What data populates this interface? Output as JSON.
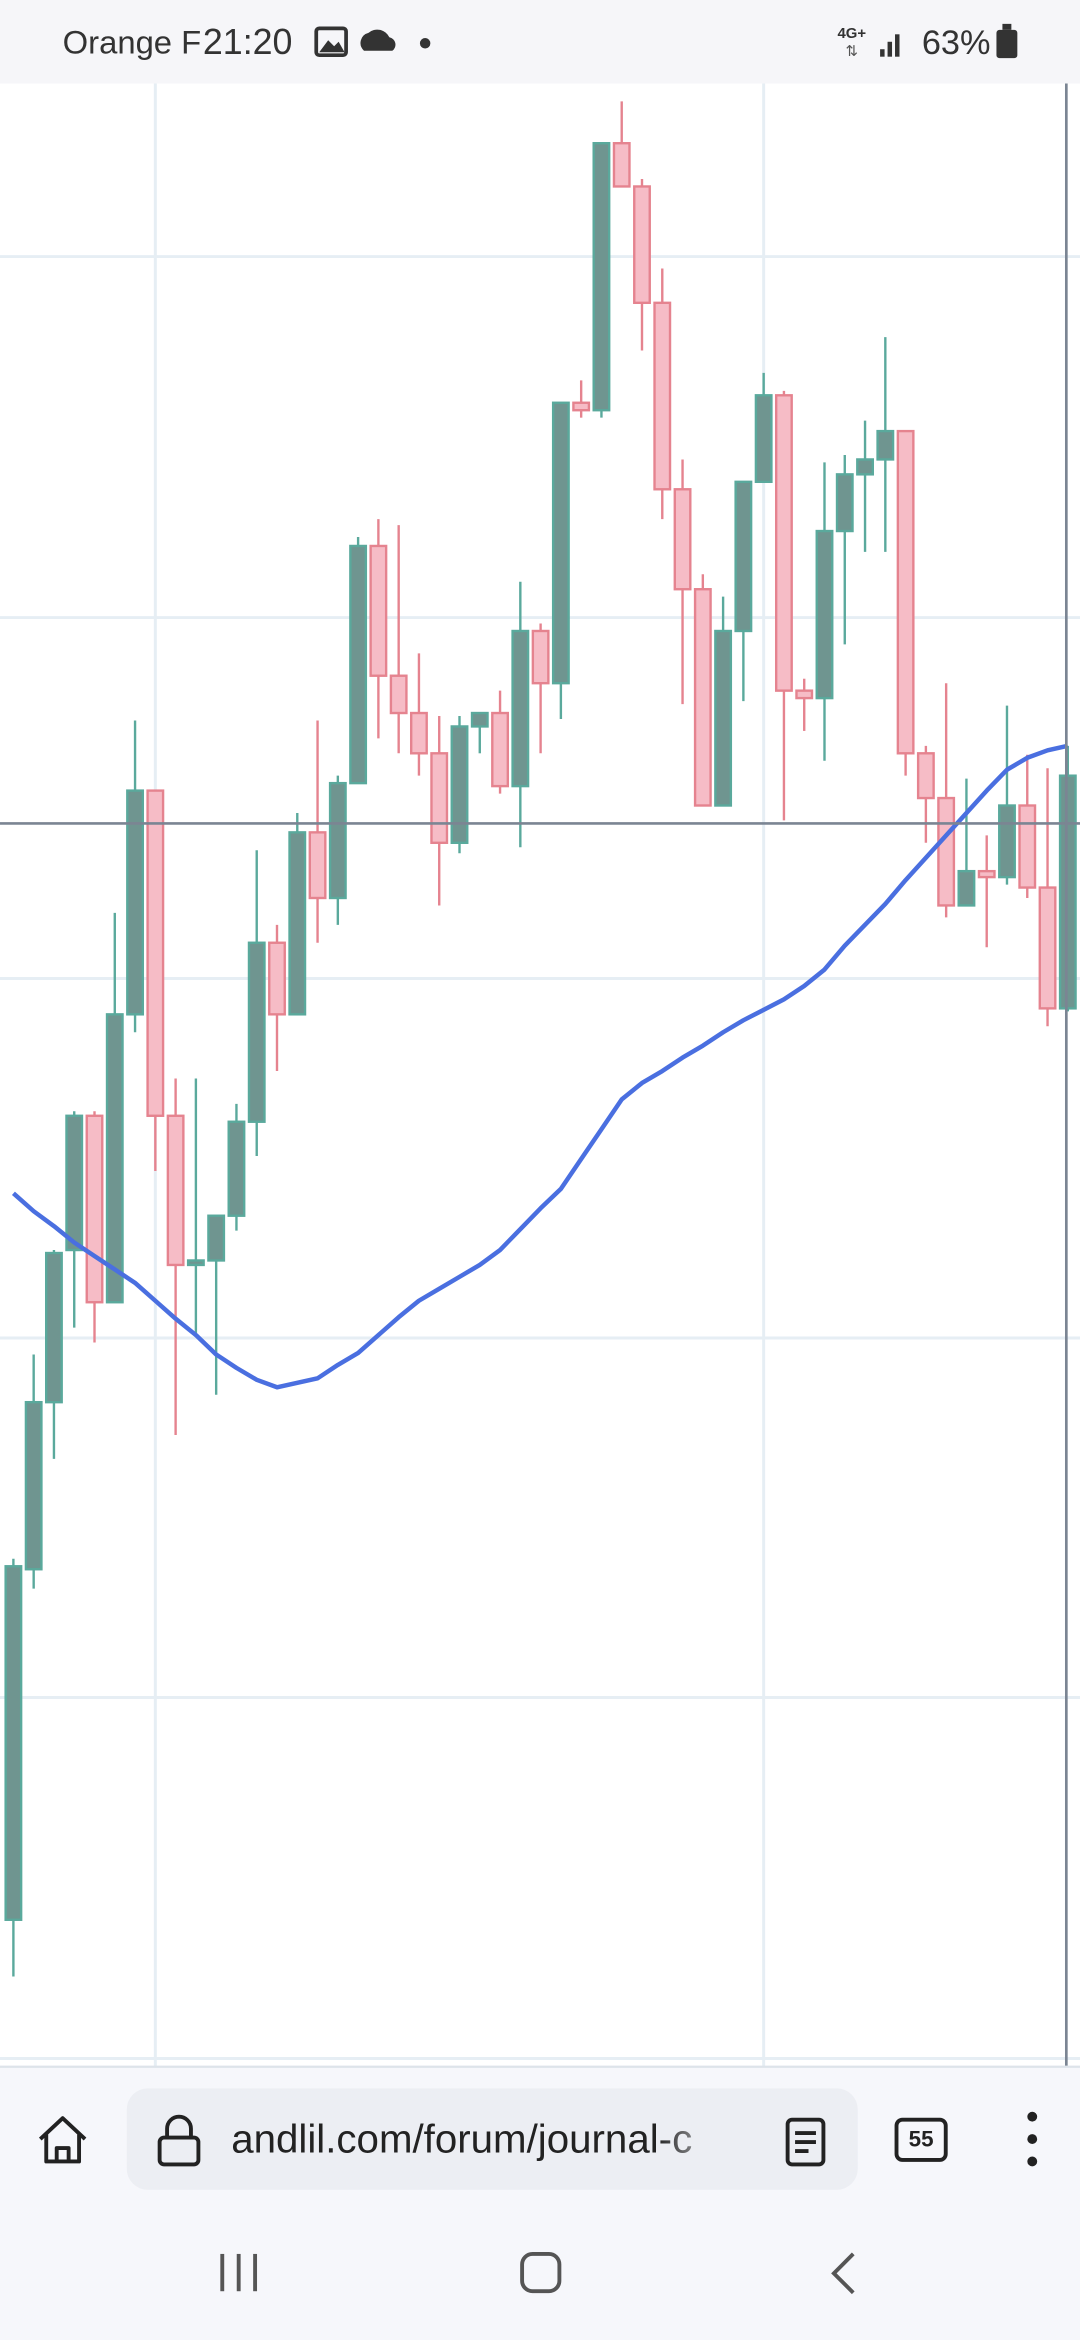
{
  "status_bar": {
    "carrier": "Orange F",
    "time": "21:20",
    "network": "4G+",
    "battery": "63%"
  },
  "browser": {
    "url": "andlil.com/forum/journal-c",
    "tab_count": "55"
  },
  "chart_data": {
    "type": "candlestick",
    "up_color": "#5aa99c",
    "up_fill": "#6f9590",
    "down_color": "#e5838f",
    "down_fill": "#f6bcc6",
    "ylim": [
      0,
      1329
    ],
    "yticks": [
      5,
      247,
      488,
      729,
      971,
      1213
    ],
    "grid": true,
    "xlim": [
      -0.66,
      52.6
    ],
    "xticks": [
      7,
      37
    ],
    "crosshair": {
      "x": 52,
      "y": 833
    },
    "open": [
      98,
      333,
      445,
      547,
      637,
      512,
      705,
      855,
      637,
      537,
      540,
      570,
      633,
      753,
      705,
      827,
      783,
      860,
      1019,
      932,
      907,
      880,
      820,
      898,
      907,
      858,
      962,
      927,
      1115,
      1110,
      1289,
      1260,
      1182,
      1057,
      990,
      845,
      962,
      1062,
      1120,
      922,
      917,
      1029,
      1067,
      1077,
      1096,
      880,
      850,
      778,
      801,
      797,
      845,
      790,
      709
    ],
    "high": [
      340,
      477,
      547,
      640,
      640,
      773,
      902,
      855,
      662,
      662,
      570,
      645,
      815,
      765,
      840,
      902,
      865,
      1025,
      1037,
      1033,
      947,
      905,
      905,
      907,
      922,
      995,
      967,
      1115,
      1130,
      1289,
      1317,
      1265,
      1205,
      1077,
      1000,
      985,
      1062,
      1135,
      1123,
      930,
      1075,
      1080,
      1103,
      1159,
      1096,
      885,
      927,
      863,
      825,
      912,
      879,
      870,
      885
    ],
    "low": [
      60,
      320,
      407,
      495,
      485,
      512,
      693,
      600,
      423,
      490,
      450,
      560,
      610,
      667,
      705,
      753,
      765,
      860,
      890,
      880,
      865,
      778,
      813,
      880,
      853,
      817,
      880,
      903,
      1105,
      1105,
      1260,
      1150,
      1037,
      913,
      845,
      845,
      915,
      1062,
      835,
      895,
      875,
      953,
      1015,
      1015,
      865,
      820,
      770,
      778,
      750,
      792,
      783,
      697,
      707
    ],
    "close": [
      335,
      445,
      545,
      637,
      512,
      705,
      855,
      637,
      537,
      540,
      570,
      633,
      753,
      705,
      827,
      783,
      860,
      1019,
      932,
      907,
      880,
      820,
      898,
      907,
      858,
      962,
      927,
      1115,
      1110,
      1289,
      1260,
      1182,
      1057,
      990,
      845,
      962,
      1062,
      1120,
      922,
      917,
      1029,
      1067,
      1077,
      1096,
      880,
      850,
      778,
      801,
      797,
      845,
      790,
      709,
      865
    ],
    "ma": {
      "color": "#4a6fe0",
      "values": [
        585,
        573,
        563,
        552,
        543,
        534,
        525,
        513,
        501,
        490,
        477,
        468,
        460,
        455,
        458,
        461,
        470,
        478,
        490,
        502,
        513,
        521,
        529,
        537,
        547,
        561,
        575,
        588,
        608,
        628,
        648,
        659,
        667,
        676,
        684,
        693,
        701,
        708,
        715,
        724,
        735,
        751,
        765,
        779,
        795,
        810,
        825,
        840,
        855,
        869,
        877,
        882,
        885
      ]
    }
  }
}
